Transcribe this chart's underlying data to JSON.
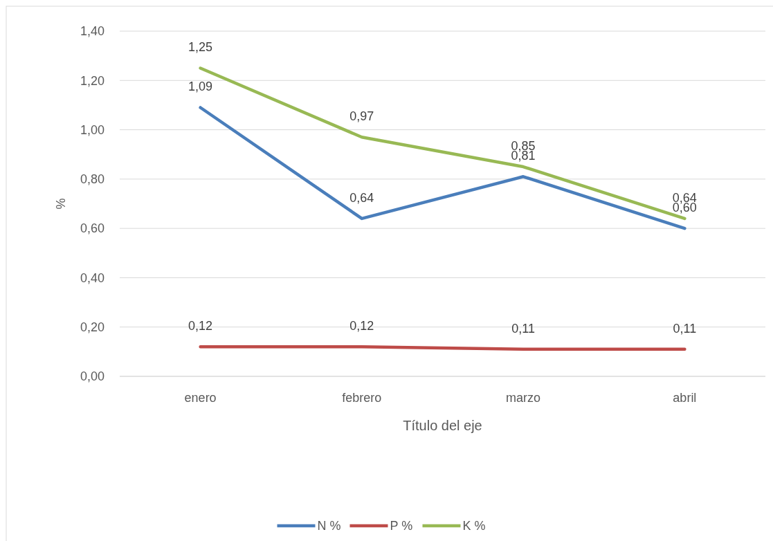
{
  "chart_data": {
    "type": "line",
    "xlabel": "Título del eje",
    "ylabel": "%",
    "categories": [
      "enero",
      "febrero",
      "marzo",
      "abril"
    ],
    "series": [
      {
        "name": "N %",
        "color": "#4a7ebb",
        "values": [
          1.09,
          0.64,
          0.81,
          0.6
        ],
        "value_labels": [
          "1,09",
          "0,64",
          "0,81",
          "0,60"
        ]
      },
      {
        "name": "P %",
        "color": "#be4b48",
        "values": [
          0.12,
          0.12,
          0.11,
          0.11
        ],
        "value_labels": [
          "0,12",
          "0,12",
          "0,11",
          "0,11"
        ]
      },
      {
        "name": "K %",
        "color": "#98b954",
        "values": [
          1.25,
          0.97,
          0.85,
          0.64
        ],
        "value_labels": [
          "1,25",
          "0,97",
          "0,85",
          "0,64"
        ]
      }
    ],
    "ylim": [
      0,
      1.4
    ],
    "yticks": [
      {
        "value": 0,
        "label": "0,00"
      },
      {
        "value": 0.2,
        "label": "0,20"
      },
      {
        "value": 0.4,
        "label": "0,40"
      },
      {
        "value": 0.6,
        "label": "0,60"
      },
      {
        "value": 0.8,
        "label": "0,80"
      },
      {
        "value": 1.0,
        "label": "1,00"
      },
      {
        "value": 1.2,
        "label": "1,20"
      },
      {
        "value": 1.4,
        "label": "1,40"
      }
    ],
    "grid": "y",
    "legend": "bottom",
    "marker": "none",
    "line_style": "solid"
  }
}
